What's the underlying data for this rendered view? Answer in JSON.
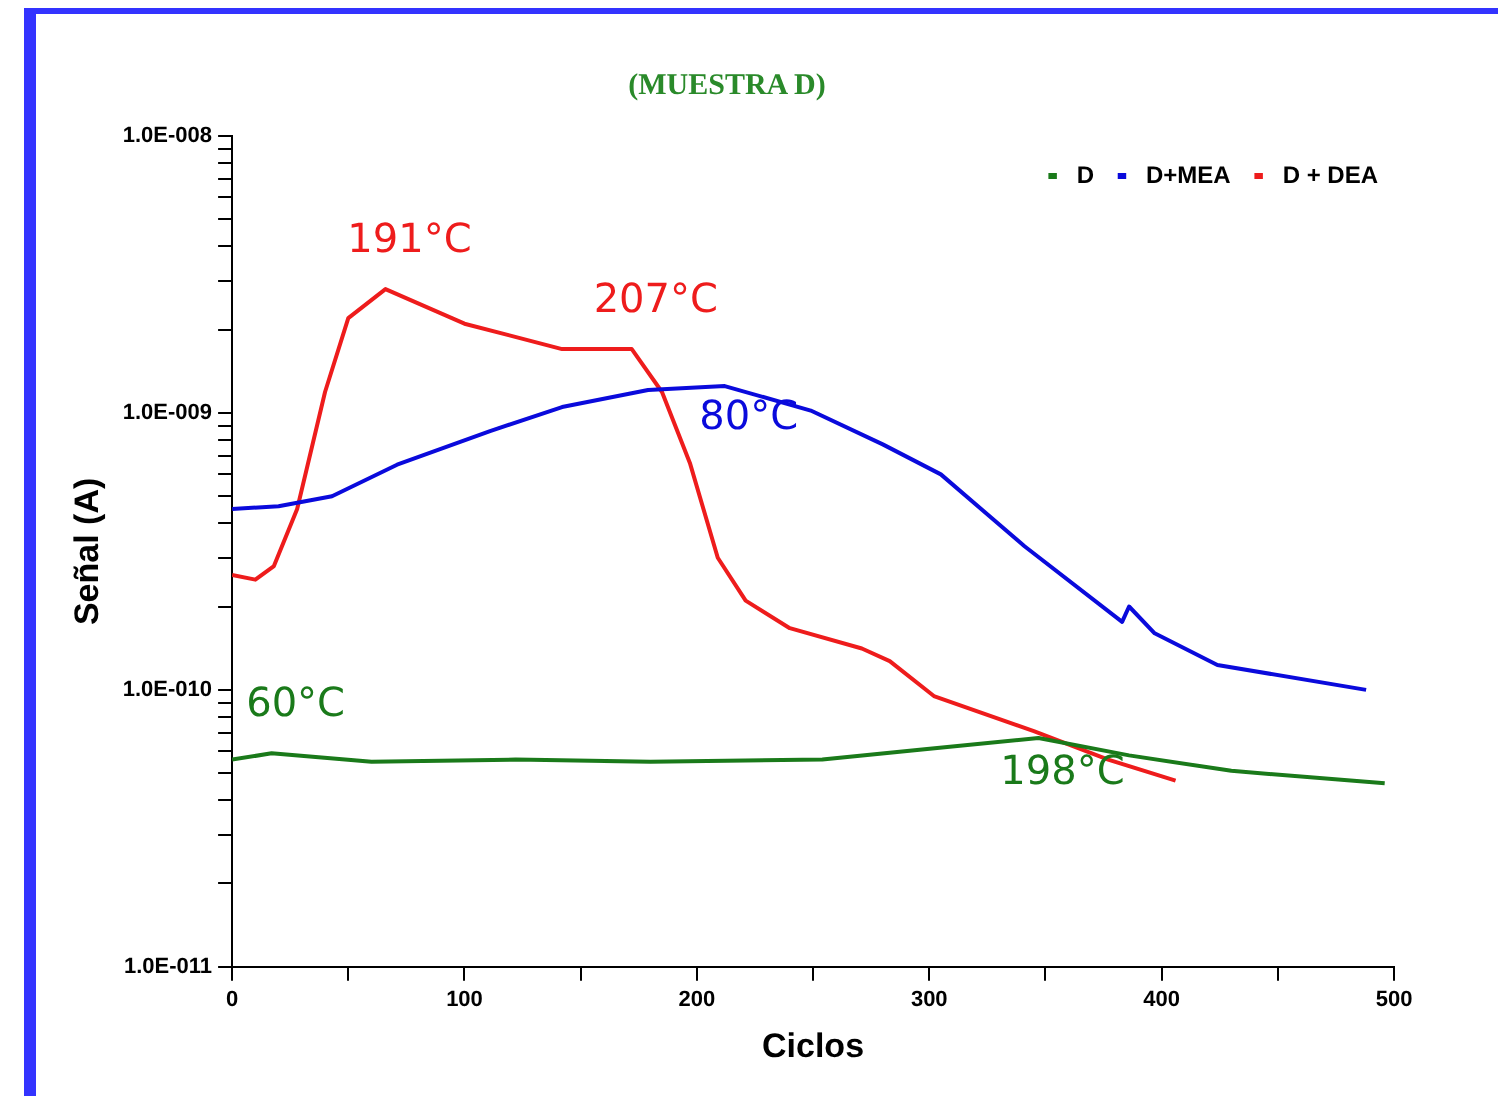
{
  "chart_data": {
    "type": "line",
    "title": "(MUESTRA D)",
    "xlabel": "Ciclos",
    "ylabel": "Señal (A)",
    "log": "y",
    "legend": "top right",
    "grid": false,
    "marker": "none",
    "line_style": "solid",
    "xlim": [
      0,
      500
    ],
    "xticks": [
      0,
      {
        "value": 50,
        "label": null
      },
      100,
      {
        "value": 150,
        "label": null
      },
      200,
      {
        "value": 250,
        "label": null
      },
      300,
      {
        "value": 350,
        "label": null
      },
      400,
      {
        "value": 450,
        "label": null
      },
      500
    ],
    "ylim": [
      1e-11,
      1e-08
    ],
    "yticks": [
      {
        "value": 1e-11,
        "label": "1.0E-011"
      },
      {
        "value": 2e-11,
        "label": null
      },
      {
        "value": 3e-11,
        "label": null
      },
      {
        "value": 4e-11,
        "label": null
      },
      {
        "value": 5e-11,
        "label": null
      },
      {
        "value": 6e-11,
        "label": null
      },
      {
        "value": 7e-11,
        "label": null
      },
      {
        "value": 8e-11,
        "label": null
      },
      {
        "value": 9e-11,
        "label": null
      },
      {
        "value": 1e-10,
        "label": "1.0E-010"
      },
      {
        "value": 2e-10,
        "label": null
      },
      {
        "value": 3e-10,
        "label": null
      },
      {
        "value": 4e-10,
        "label": null
      },
      {
        "value": 5e-10,
        "label": null
      },
      {
        "value": 6e-10,
        "label": null
      },
      {
        "value": 7e-10,
        "label": null
      },
      {
        "value": 8e-10,
        "label": null
      },
      {
        "value": 9e-10,
        "label": null
      },
      {
        "value": 1e-09,
        "label": "1.0E-009"
      },
      {
        "value": 2e-09,
        "label": null
      },
      {
        "value": 3e-09,
        "label": null
      },
      {
        "value": 4e-09,
        "label": null
      },
      {
        "value": 5e-09,
        "label": null
      },
      {
        "value": 6e-09,
        "label": null
      },
      {
        "value": 7e-09,
        "label": null
      },
      {
        "value": 8e-09,
        "label": null
      },
      {
        "value": 9e-09,
        "label": null
      },
      {
        "value": 1e-08,
        "label": "1.0E-008"
      }
    ],
    "series": [
      {
        "name": "D",
        "color": "#1a7a1a",
        "x": [
          0,
          17,
          60,
          122,
          180,
          254,
          298,
          347,
          386,
          430,
          496
        ],
        "values": [
          5.6e-11,
          5.9e-11,
          5.5e-11,
          5.6e-11,
          5.5e-11,
          5.6e-11,
          6.1e-11,
          6.7e-11,
          5.8e-11,
          5.1e-11,
          4.6e-11
        ]
      },
      {
        "name": "D+MEA",
        "color": "#0a0adc",
        "x": [
          0,
          20,
          43,
          71,
          111,
          142,
          179,
          212,
          249,
          280,
          305,
          341,
          383,
          386,
          397,
          424,
          488
        ],
        "values": [
          4.5e-10,
          4.6e-10,
          5e-10,
          6.5e-10,
          8.6e-10,
          1.05e-09,
          1.21e-09,
          1.25e-09,
          1.02e-09,
          7.7e-10,
          6e-10,
          3.3e-10,
          1.76e-10,
          2e-10,
          1.6e-10,
          1.23e-10,
          1e-10
        ]
      },
      {
        "name": "D + DEA",
        "color": "#ee1c1c",
        "x": [
          0,
          10,
          18,
          28,
          40,
          50,
          66,
          100,
          142,
          172,
          185,
          197,
          209,
          221,
          240,
          271,
          283,
          302,
          345,
          377,
          406
        ],
        "values": [
          2.6e-10,
          2.5e-10,
          2.8e-10,
          4.5e-10,
          1.19e-09,
          2.2e-09,
          2.8e-09,
          2.1e-09,
          1.7e-09,
          1.7e-09,
          1.19e-09,
          6.6e-10,
          3e-10,
          2.1e-10,
          1.67e-10,
          1.41e-10,
          1.27e-10,
          9.5e-11,
          7.1e-11,
          5.6e-11,
          4.7e-11
        ]
      }
    ],
    "annotations": [
      {
        "text": "191°C",
        "x": 66,
        "y": 2.8e-09
      },
      {
        "text": "207°C",
        "x": 172,
        "y": 1.7e-09
      },
      {
        "text": "80°C",
        "x": 212,
        "y": 1.25e-09
      },
      {
        "text": "60°C",
        "x": 17,
        "y": 5.9e-11
      },
      {
        "text": "198°C",
        "x": 347,
        "y": 6.7e-11
      }
    ]
  }
}
